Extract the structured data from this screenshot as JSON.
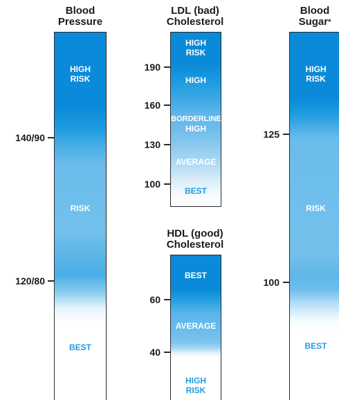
{
  "blood_pressure": {
    "title_line1": "Blood",
    "title_line2": "Pressure",
    "zones": {
      "high_risk": [
        "HIGH",
        "RISK"
      ],
      "risk": "RISK",
      "best": "BEST"
    },
    "ticks": [
      "140/90",
      "120/80"
    ]
  },
  "ldl": {
    "title_line1": "LDL (bad)",
    "title_line2": "Cholesterol",
    "zones": {
      "high_risk": [
        "HIGH",
        "RISK"
      ],
      "high": "HIGH",
      "borderline_high": [
        "BORDERLINE",
        "HIGH"
      ],
      "average": "AVERAGE",
      "best": "BEST"
    },
    "ticks": [
      "190",
      "160",
      "130",
      "100"
    ]
  },
  "hdl": {
    "title_line1": "HDL (good)",
    "title_line2": "Cholesterol",
    "zones": {
      "best": "BEST",
      "average": "AVERAGE",
      "high_risk": [
        "HIGH",
        "RISK"
      ]
    },
    "ticks": [
      "60",
      "40"
    ]
  },
  "blood_sugar": {
    "title_line1": "Blood",
    "title_line2": "Sugar",
    "asterisk": "*",
    "zones": {
      "high_risk": [
        "HIGH",
        "RISK"
      ],
      "risk": "RISK",
      "best": "BEST"
    },
    "ticks": [
      "125",
      "100"
    ]
  },
  "colors": {
    "dark_blue": "#0a8ad8",
    "mid_blue": "#5cb6e8",
    "light_blue": "#b9e0f6",
    "best_text": "#1f9fe0"
  }
}
